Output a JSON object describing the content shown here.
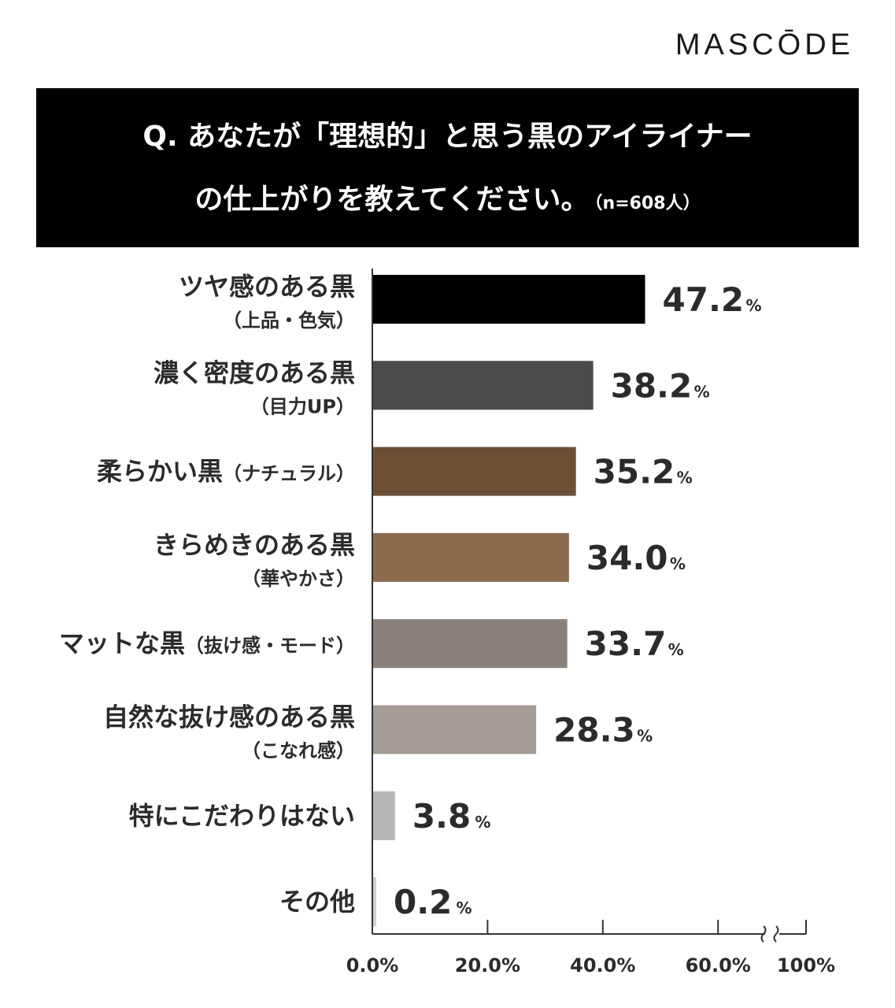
{
  "brand": "MASCŌDE",
  "title": {
    "line1": "Q. あなたが「理想的」と思う黒のアイライナー",
    "line2": "の仕上がりを教えてください。",
    "sample": "（n=608人）"
  },
  "chart_data": {
    "type": "bar",
    "orientation": "horizontal",
    "categories": [
      {
        "label": "ツヤ感のある黒",
        "sub": "（上品・色気）"
      },
      {
        "label": "濃く密度のある黒",
        "sub": "（目力UP）"
      },
      {
        "label": "柔らかい黒",
        "inline_sub": "（ナチュラル）"
      },
      {
        "label": "きらめきのある黒",
        "sub": "（華やかさ）"
      },
      {
        "label": "マットな黒",
        "inline_sub": "（抜け感・モード）"
      },
      {
        "label": "自然な抜け感のある黒",
        "sub": "（こなれ感）"
      },
      {
        "label": "特にこだわりはない"
      },
      {
        "label": "その他"
      }
    ],
    "values": [
      47.2,
      38.2,
      35.2,
      34.0,
      33.7,
      28.3,
      3.8,
      0.2
    ],
    "value_labels": [
      "47.2",
      "38.2",
      "35.2",
      "34.0",
      "33.7",
      "28.3",
      "3.8",
      "0.2"
    ],
    "value_unit": "%",
    "colors": [
      "#000000",
      "#4a4a4a",
      "#6b5037",
      "#8c6c4e",
      "#8a827a",
      "#a49d95",
      "#b7b7b7",
      "#cfcfcf"
    ],
    "x_ticks": [
      "0.0%",
      "20.0%",
      "40.0%",
      "60.0%",
      "100%"
    ],
    "x_tick_values": [
      0,
      20,
      40,
      60,
      100
    ],
    "axis_break": "between 60.0% and 100%",
    "xlim": [
      0,
      100
    ],
    "grid": false
  }
}
